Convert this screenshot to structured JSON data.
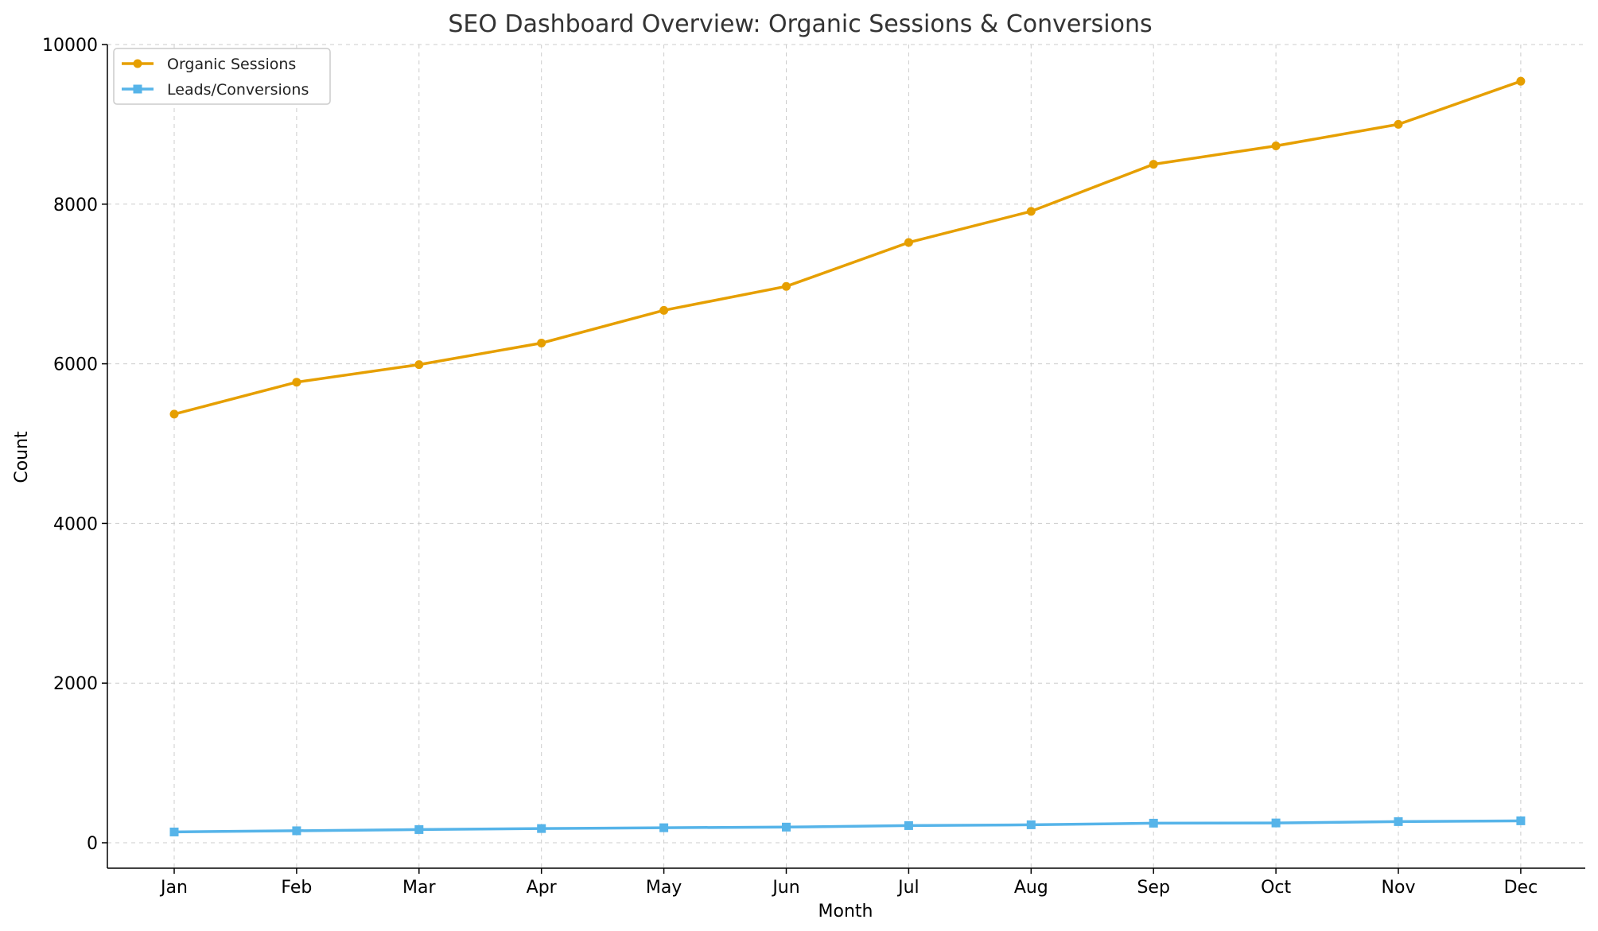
{
  "chart_data": {
    "type": "line",
    "title": "SEO Dashboard Overview: Organic Sessions & Conversions",
    "xlabel": "Month",
    "ylabel": "Count",
    "categories": [
      "Jan",
      "Feb",
      "Mar",
      "Apr",
      "May",
      "Jun",
      "Jul",
      "Aug",
      "Sep",
      "Oct",
      "Nov",
      "Dec"
    ],
    "ylim": [
      -330,
      10000
    ],
    "yticks": [
      0,
      2000,
      4000,
      6000,
      8000,
      10000
    ],
    "grid": true,
    "legend_position": "top-left",
    "series": [
      {
        "name": "Organic Sessions",
        "color": "#E69F00",
        "marker": "circle",
        "values": [
          5370,
          5770,
          5990,
          6260,
          6670,
          6970,
          7520,
          7910,
          8500,
          8730,
          9000,
          9540
        ]
      },
      {
        "name": "Leads/Conversions",
        "color": "#56B4E9",
        "marker": "square",
        "values": [
          135,
          150,
          165,
          178,
          188,
          196,
          215,
          225,
          245,
          248,
          265,
          275
        ]
      }
    ]
  }
}
